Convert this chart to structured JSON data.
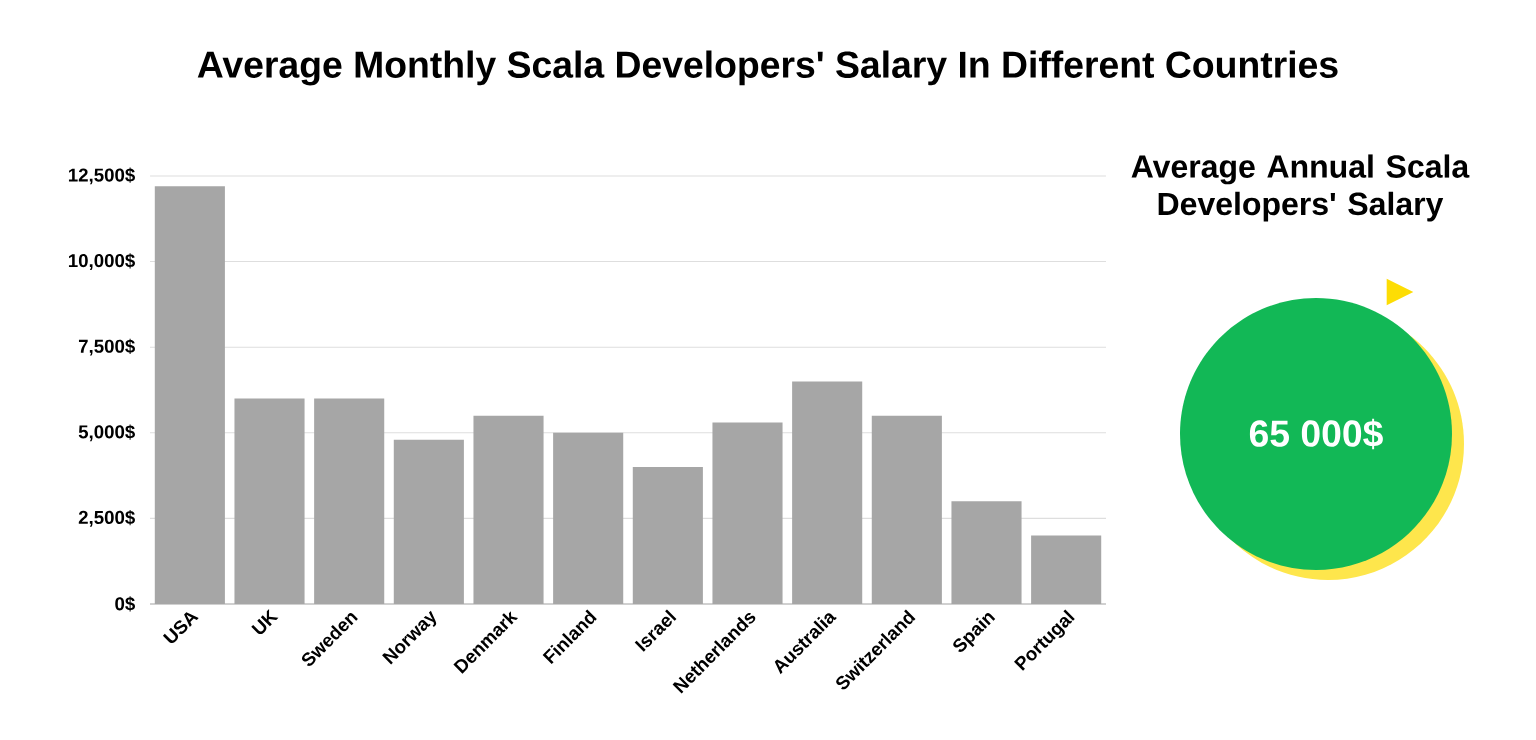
{
  "chart_data": {
    "type": "bar",
    "title": "Average Monthly Scala Developers' Salary In Different Countries",
    "categories": [
      "USA",
      "UK",
      "Sweden",
      "Norway",
      "Denmark",
      "Finland",
      "Israel",
      "Netherlands",
      "Australia",
      "Switzerland",
      "Spain",
      "Portugal"
    ],
    "values": [
      12200,
      6000,
      6000,
      4800,
      5500,
      5000,
      4000,
      5300,
      6500,
      5500,
      3000,
      2000
    ],
    "color": "#a6a6a6",
    "ylim": [
      0,
      12500
    ],
    "yticks": [
      {
        "value": 0,
        "label": "0$"
      },
      {
        "value": 2500,
        "label": "2,500$"
      },
      {
        "value": 5000,
        "label": "5,000$"
      },
      {
        "value": 7500,
        "label": "7,500$"
      },
      {
        "value": 10000,
        "label": "10,000$"
      },
      {
        "value": 12500,
        "label": "12,500$"
      }
    ],
    "grid": "y",
    "annotations": [
      "Average Annual Scala Developers' Salary",
      "65 000$"
    ]
  }
}
